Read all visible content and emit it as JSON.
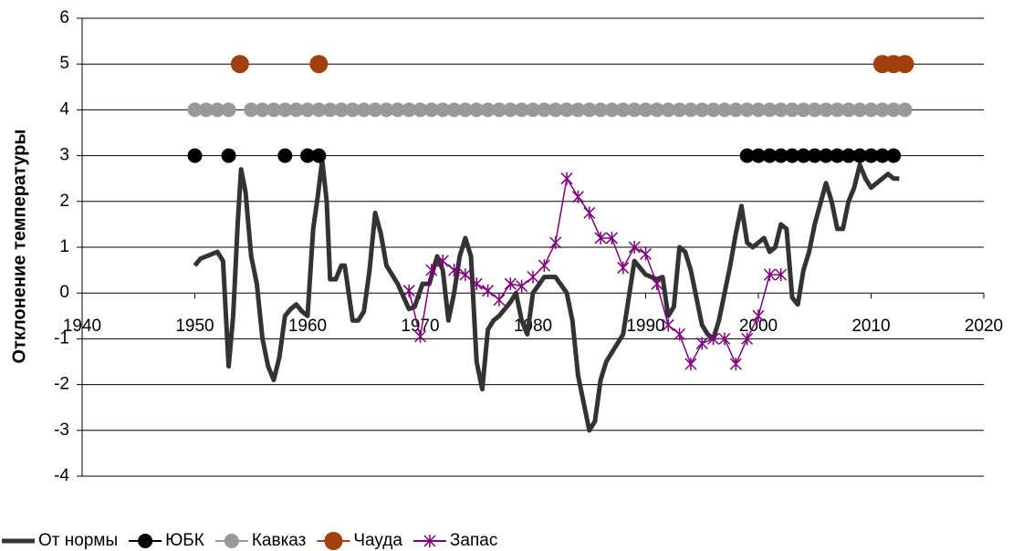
{
  "chart_data": {
    "type": "line",
    "y_label": "Отклонение температуры",
    "xlim": [
      1940,
      2020
    ],
    "xticks": [
      1940,
      1950,
      1960,
      1970,
      1980,
      1990,
      2000,
      2010,
      2020
    ],
    "ylim": [
      -4,
      6
    ],
    "yticks": [
      -4,
      -3,
      -2,
      -1,
      0,
      1,
      2,
      3,
      4,
      5,
      6
    ],
    "grid": true,
    "legend": "bottom",
    "series": [
      {
        "name": "От нормы",
        "color": "#333333",
        "line": true,
        "marker": null,
        "x": [
          1950,
          1950.5,
          1951,
          1951.5,
          1952,
          1952.5,
          1953,
          1953.4,
          1953.8,
          1954.1,
          1954.5,
          1955,
          1955.5,
          1956,
          1956.5,
          1957,
          1957.5,
          1958,
          1958.5,
          1959,
          1959.5,
          1960,
          1960.5,
          1960.9,
          1961.3,
          1961.7,
          1962,
          1962.5,
          1963,
          1963.3,
          1964,
          1964.5,
          1965,
          1965.5,
          1966,
          1966.5,
          1967,
          1968,
          1969,
          1969.5,
          1970.2,
          1970.8,
          1971.5,
          1972,
          1972.5,
          1973,
          1973.5,
          1974,
          1974.5,
          1975,
          1975.5,
          1976,
          1976.5,
          1977,
          1978,
          1978.5,
          1979,
          1979.5,
          1980,
          1981,
          1982,
          1983,
          1983.5,
          1984,
          1984.5,
          1985,
          1985.5,
          1986,
          1986.5,
          1987,
          1988,
          1989,
          1990,
          1991,
          1991.5,
          1992,
          1992.5,
          1993,
          1993.5,
          1994,
          1995,
          1995.5,
          1996,
          1996.5,
          1997,
          1997.5,
          1998,
          1998.5,
          1999,
          1999.5,
          2000,
          2000.5,
          2001,
          2001.5,
          2002,
          2002.5,
          2003,
          2003.5,
          2004,
          2004.5,
          2005,
          2006,
          2006.5,
          2007,
          2007.5,
          2008,
          2008.5,
          2009,
          2009.5,
          2010,
          2010.5,
          2011,
          2011.5,
          2012,
          2012.5
        ],
        "values": [
          0.6,
          0.75,
          0.8,
          0.85,
          0.9,
          0.7,
          -1.6,
          -0.5,
          1.5,
          2.7,
          2.2,
          0.8,
          0.2,
          -1.0,
          -1.6,
          -1.9,
          -1.4,
          -0.5,
          -0.35,
          -0.25,
          -0.4,
          -0.5,
          1.4,
          2.1,
          2.9,
          2.0,
          0.3,
          0.3,
          0.6,
          0.6,
          -0.6,
          -0.6,
          -0.4,
          0.5,
          1.75,
          1.3,
          0.6,
          0.2,
          -0.35,
          -0.3,
          0.2,
          0.2,
          0.8,
          0.5,
          -0.6,
          0.0,
          0.8,
          1.2,
          0.8,
          -1.5,
          -2.1,
          -0.8,
          -0.6,
          -0.5,
          -0.2,
          0.0,
          -0.6,
          -0.9,
          0.0,
          0.35,
          0.35,
          0.0,
          -0.6,
          -1.8,
          -2.4,
          -3.0,
          -2.8,
          -1.9,
          -1.5,
          -1.3,
          -0.9,
          0.7,
          0.4,
          0.3,
          0.35,
          -0.5,
          -0.3,
          1.0,
          0.9,
          0.5,
          -0.7,
          -0.9,
          -1.0,
          -0.6,
          0.0,
          0.6,
          1.3,
          1.9,
          1.1,
          1.0,
          1.1,
          1.2,
          0.9,
          1.0,
          1.5,
          1.4,
          -0.1,
          -0.25,
          0.5,
          0.9,
          1.5,
          2.4,
          2.0,
          1.4,
          1.4,
          2.0,
          2.3,
          2.8,
          2.5,
          2.3,
          2.4,
          2.5,
          2.6,
          2.5,
          2.5
        ]
      },
      {
        "name": "ЮБК",
        "color": "#000000",
        "line": false,
        "marker": "circle",
        "x": [
          1950,
          1953,
          1958,
          1960,
          1961,
          1999,
          2000,
          2001,
          2002,
          2003,
          2004,
          2005,
          2006,
          2007,
          2008,
          2009,
          2010,
          2011,
          2012
        ],
        "values": [
          3,
          3,
          3,
          3,
          3,
          3,
          3,
          3,
          3,
          3,
          3,
          3,
          3,
          3,
          3,
          3,
          3,
          3,
          3
        ]
      },
      {
        "name": "Кавказ",
        "color": "#999999",
        "line": false,
        "marker": "circle",
        "x": [
          1950,
          1951,
          1952,
          1953,
          1955,
          1956,
          1957,
          1958,
          1959,
          1960,
          1961,
          1962,
          1963,
          1964,
          1965,
          1966,
          1967,
          1968,
          1969,
          1970,
          1971,
          1972,
          1973,
          1974,
          1975,
          1976,
          1977,
          1978,
          1979,
          1980,
          1981,
          1982,
          1983,
          1984,
          1985,
          1986,
          1987,
          1988,
          1989,
          1990,
          1991,
          1992,
          1993,
          1994,
          1995,
          1996,
          1997,
          1998,
          1999,
          2000,
          2001,
          2002,
          2003,
          2004,
          2005,
          2006,
          2007,
          2008,
          2009,
          2010,
          2011,
          2012,
          2013
        ],
        "values": [
          4,
          4,
          4,
          4,
          4,
          4,
          4,
          4,
          4,
          4,
          4,
          4,
          4,
          4,
          4,
          4,
          4,
          4,
          4,
          4,
          4,
          4,
          4,
          4,
          4,
          4,
          4,
          4,
          4,
          4,
          4,
          4,
          4,
          4,
          4,
          4,
          4,
          4,
          4,
          4,
          4,
          4,
          4,
          4,
          4,
          4,
          4,
          4,
          4,
          4,
          4,
          4,
          4,
          4,
          4,
          4,
          4,
          4,
          4,
          4,
          4,
          4,
          4
        ]
      },
      {
        "name": "Чауда",
        "color": "#a0410d",
        "line": false,
        "marker": "circle",
        "x": [
          1954,
          1961,
          2011,
          2012,
          2013
        ],
        "values": [
          5,
          5,
          5,
          5,
          5
        ]
      },
      {
        "name": "Запас",
        "color": "#800080",
        "line": true,
        "marker": "star",
        "x": [
          1969,
          1970,
          1971,
          1972,
          1973,
          1974,
          1975,
          1976,
          1977,
          1978,
          1979,
          1980,
          1981,
          1982,
          1983,
          1984,
          1985,
          1986,
          1987,
          1988,
          1989,
          1990,
          1991,
          1992,
          1993,
          1994,
          1995,
          1996,
          1997,
          1998,
          1999,
          2000,
          2001,
          2002
        ],
        "values": [
          0.05,
          -0.95,
          0.5,
          0.7,
          0.5,
          0.4,
          0.2,
          0.05,
          -0.15,
          0.2,
          0.15,
          0.35,
          0.6,
          1.1,
          2.5,
          2.1,
          1.75,
          1.2,
          1.2,
          0.55,
          1.0,
          0.85,
          0.2,
          -0.7,
          -0.9,
          -1.55,
          -1.1,
          -1.0,
          -1.0,
          -1.55,
          -1.0,
          -0.5,
          0.4,
          0.4
        ]
      }
    ]
  }
}
